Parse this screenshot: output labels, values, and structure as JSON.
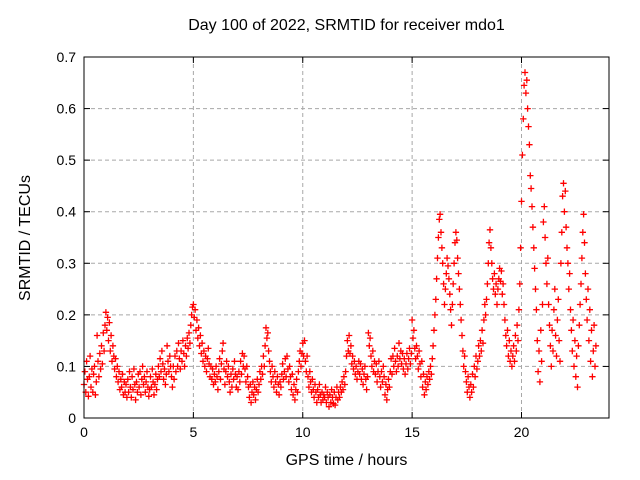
{
  "figure": {
    "title": "Day 100 of 2022, SRMTID for receiver mdo1",
    "x_axis_label": "GPS time / hours",
    "y_axis_label": "SRMTID / TECUs"
  },
  "colors": {
    "marker": "#ff0000",
    "grid": "#a8a8a8",
    "axis": "#000000",
    "background": "#ffffff",
    "text": "#000000"
  },
  "chart_data": {
    "type": "scatter",
    "marker": "plus",
    "title": "Day 100 of 2022, SRMTID for receiver mdo1",
    "xlabel": "GPS time / hours",
    "ylabel": "SRMTID / TECUs",
    "xlim": [
      0,
      24
    ],
    "ylim": [
      0,
      0.7
    ],
    "grid": true,
    "legend": "none",
    "x_ticks": [
      {
        "value": 0,
        "label": "0"
      },
      {
        "value": 5,
        "label": "5"
      },
      {
        "value": 10,
        "label": "10"
      },
      {
        "value": 15,
        "label": "15"
      },
      {
        "value": 20,
        "label": "20"
      }
    ],
    "y_ticks": [
      {
        "value": 0,
        "label": "0"
      },
      {
        "value": 0.1,
        "label": "0.1"
      },
      {
        "value": 0.2,
        "label": "0.2"
      },
      {
        "value": 0.3,
        "label": "0.3"
      },
      {
        "value": 0.4,
        "label": "0.4"
      },
      {
        "value": 0.5,
        "label": "0.5"
      },
      {
        "value": 0.6,
        "label": "0.6"
      },
      {
        "value": 0.7,
        "label": "0.7"
      }
    ],
    "series": [
      {
        "name": "SRMTID",
        "sampling": {
          "t_start": 0.0,
          "dt_hours": 0.04
        },
        "values": [
          0.065,
          0.09,
          0.05,
          0.11,
          0.075,
          0.042,
          0.08,
          0.12,
          0.06,
          0.095,
          0.05,
          0.085,
          0.1,
          0.045,
          0.07,
          0.16,
          0.11,
          0.08,
          0.125,
          0.095,
          0.14,
          0.105,
          0.165,
          0.13,
          0.18,
          0.205,
          0.17,
          0.195,
          0.15,
          0.185,
          0.13,
          0.16,
          0.11,
          0.14,
          0.12,
          0.095,
          0.115,
          0.08,
          0.1,
          0.07,
          0.09,
          0.055,
          0.075,
          0.06,
          0.085,
          0.045,
          0.07,
          0.05,
          0.065,
          0.04,
          0.075,
          0.05,
          0.09,
          0.06,
          0.04,
          0.08,
          0.055,
          0.095,
          0.065,
          0.035,
          0.07,
          0.05,
          0.085,
          0.06,
          0.09,
          0.045,
          0.075,
          0.1,
          0.065,
          0.08,
          0.05,
          0.07,
          0.09,
          0.06,
          0.042,
          0.055,
          0.08,
          0.06,
          0.095,
          0.07,
          0.045,
          0.065,
          0.085,
          0.055,
          0.075,
          0.1,
          0.08,
          0.115,
          0.09,
          0.13,
          0.105,
          0.075,
          0.095,
          0.065,
          0.085,
          0.14,
          0.11,
          0.09,
          0.12,
          0.1,
          0.08,
          0.06,
          0.1,
          0.075,
          0.12,
          0.09,
          0.13,
          0.1,
          0.145,
          0.115,
          0.095,
          0.13,
          0.11,
          0.15,
          0.125,
          0.1,
          0.14,
          0.12,
          0.155,
          0.135,
          0.165,
          0.145,
          0.18,
          0.2,
          0.215,
          0.22,
          0.195,
          0.21,
          0.17,
          0.19,
          0.155,
          0.175,
          0.14,
          0.16,
          0.125,
          0.145,
          0.11,
          0.13,
          0.1,
          0.12,
          0.09,
          0.115,
          0.135,
          0.105,
          0.08,
          0.1,
          0.075,
          0.095,
          0.065,
          0.085,
          0.07,
          0.1,
          0.08,
          0.055,
          0.09,
          0.115,
          0.075,
          0.105,
          0.13,
          0.145,
          0.095,
          0.065,
          0.09,
          0.11,
          0.08,
          0.1,
          0.07,
          0.05,
          0.085,
          0.06,
          0.095,
          0.075,
          0.11,
          0.085,
          0.06,
          0.08,
          0.055,
          0.09,
          0.07,
          0.11,
          0.085,
          0.125,
          0.1,
          0.12,
          0.095,
          0.07,
          0.1,
          0.08,
          0.06,
          0.04,
          0.065,
          0.03,
          0.05,
          0.07,
          0.045,
          0.06,
          0.035,
          0.055,
          0.075,
          0.05,
          0.065,
          0.09,
          0.075,
          0.1,
          0.085,
          0.12,
          0.1,
          0.14,
          0.175,
          0.155,
          0.165,
          0.13,
          0.11,
          0.09,
          0.07,
          0.1,
          0.08,
          0.06,
          0.09,
          0.07,
          0.05,
          0.08,
          0.065,
          0.045,
          0.07,
          0.06,
          0.085,
          0.105,
          0.075,
          0.09,
          0.115,
          0.08,
          0.12,
          0.095,
          0.07,
          0.1,
          0.08,
          0.055,
          0.085,
          0.045,
          0.065,
          0.035,
          0.055,
          0.075,
          0.05,
          0.09,
          0.11,
          0.13,
          0.1,
          0.125,
          0.145,
          0.12,
          0.15,
          0.11,
          0.09,
          0.12,
          0.08,
          0.06,
          0.09,
          0.07,
          0.05,
          0.075,
          0.055,
          0.04,
          0.065,
          0.05,
          0.03,
          0.055,
          0.04,
          0.065,
          0.045,
          0.03,
          0.05,
          0.035,
          0.045,
          0.04,
          0.06,
          0.03,
          0.05,
          0.04,
          0.022,
          0.045,
          0.03,
          0.055,
          0.04,
          0.028,
          0.05,
          0.025,
          0.04,
          0.06,
          0.035,
          0.05,
          0.04,
          0.06,
          0.05,
          0.07,
          0.055,
          0.08,
          0.065,
          0.09,
          0.12,
          0.15,
          0.13,
          0.16,
          0.125,
          0.14,
          0.105,
          0.12,
          0.095,
          0.11,
          0.085,
          0.1,
          0.075,
          0.09,
          0.11,
          0.085,
          0.105,
          0.075,
          0.095,
          0.065,
          0.085,
          0.1,
          0.075,
          0.055,
          0.08,
          0.165,
          0.14,
          0.155,
          0.12,
          0.1,
          0.13,
          0.09,
          0.11,
          0.085,
          0.105,
          0.07,
          0.09,
          0.11,
          0.08,
          0.06,
          0.09,
          0.07,
          0.1,
          0.08,
          0.045,
          0.065,
          0.035,
          0.055,
          0.075,
          0.06,
          0.09,
          0.115,
          0.085,
          0.12,
          0.1,
          0.135,
          0.11,
          0.09,
          0.12,
          0.1,
          0.145,
          0.115,
          0.13,
          0.105,
          0.125,
          0.095,
          0.115,
          0.085,
          0.105,
          0.125,
          0.095,
          0.115,
          0.135,
          0.105,
          0.125,
          0.19,
          0.155,
          0.17,
          0.135,
          0.115,
          0.14,
          0.12,
          0.095,
          0.13,
          0.105,
          0.08,
          0.11,
          0.06,
          0.085,
          0.045,
          0.07,
          0.055,
          0.08,
          0.065,
          0.09,
          0.075,
          0.1,
          0.085,
          0.115,
          0.14,
          0.17,
          0.2,
          0.23,
          0.27,
          0.31,
          0.35,
          0.385,
          0.395,
          0.36,
          0.33,
          0.3,
          0.26,
          0.22,
          0.25,
          0.28,
          0.31,
          0.295,
          0.27,
          0.24,
          0.21,
          0.18,
          0.22,
          0.26,
          0.3,
          0.34,
          0.36,
          0.345,
          0.31,
          0.28,
          0.25,
          0.22,
          0.19,
          0.16,
          0.13,
          0.1,
          0.12,
          0.09,
          0.07,
          0.05,
          0.08,
          0.06,
          0.04,
          0.065,
          0.05,
          0.085,
          0.06,
          0.1,
          0.08,
          0.12,
          0.095,
          0.11,
          0.14,
          0.12,
          0.15,
          0.13,
          0.17,
          0.145,
          0.19,
          0.22,
          0.2,
          0.23,
          0.26,
          0.3,
          0.34,
          0.365,
          0.33,
          0.3,
          0.27,
          0.25,
          0.28,
          0.24,
          0.26,
          0.22,
          0.25,
          0.27,
          0.29,
          0.265,
          0.285,
          0.24,
          0.26,
          0.22,
          0.19,
          0.16,
          0.14,
          0.17,
          0.12,
          0.15,
          0.11,
          0.13,
          0.1,
          0.12,
          0.14,
          0.11,
          0.16,
          0.13,
          0.18,
          0.15,
          0.21,
          0.26,
          0.33,
          0.42,
          0.51,
          0.58,
          0.645,
          0.67,
          0.63,
          0.655,
          0.6,
          0.565,
          0.53,
          0.47,
          0.445,
          0.41,
          0.37,
          0.33,
          0.29,
          0.25,
          0.21,
          0.15,
          0.09,
          0.13,
          0.07,
          0.17,
          0.11,
          0.22,
          0.38,
          0.41,
          0.35,
          0.3,
          0.26,
          0.31,
          0.22,
          0.18,
          0.14,
          0.1,
          0.17,
          0.13,
          0.21,
          0.25,
          0.16,
          0.12,
          0.19,
          0.23,
          0.15,
          0.11,
          0.3,
          0.36,
          0.43,
          0.455,
          0.4,
          0.44,
          0.37,
          0.33,
          0.3,
          0.25,
          0.28,
          0.21,
          0.17,
          0.13,
          0.19,
          0.1,
          0.15,
          0.08,
          0.12,
          0.06,
          0.14,
          0.18,
          0.22,
          0.26,
          0.31,
          0.36,
          0.395,
          0.34,
          0.28,
          0.23,
          0.19,
          0.25,
          0.15,
          0.21,
          0.11,
          0.17,
          0.08,
          0.13,
          0.18,
          0.1,
          0.14
        ]
      }
    ]
  }
}
